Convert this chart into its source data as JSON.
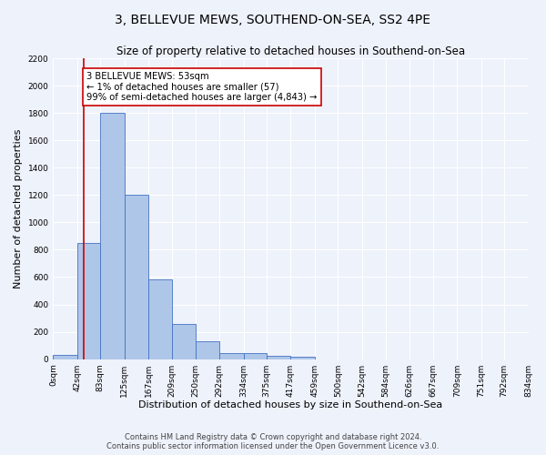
{
  "title": "3, BELLEVUE MEWS, SOUTHEND-ON-SEA, SS2 4PE",
  "subtitle": "Size of property relative to detached houses in Southend-on-Sea",
  "xlabel": "Distribution of detached houses by size in Southend-on-Sea",
  "ylabel": "Number of detached properties",
  "bar_edges": [
    0,
    42,
    83,
    125,
    167,
    209,
    250,
    292,
    334,
    375,
    417,
    459,
    500,
    542,
    584,
    626,
    667,
    709,
    751,
    792,
    834
  ],
  "bar_heights": [
    28,
    850,
    1800,
    1200,
    580,
    260,
    130,
    45,
    42,
    25,
    20,
    0,
    0,
    0,
    0,
    0,
    0,
    0,
    0,
    0
  ],
  "bar_color": "#aec6e8",
  "bar_edge_color": "#4472c4",
  "property_line_x": 53,
  "property_line_color": "#cc0000",
  "annotation_text": "3 BELLEVUE MEWS: 53sqm\n← 1% of detached houses are smaller (57)\n99% of semi-detached houses are larger (4,843) →",
  "annotation_box_color": "#ffffff",
  "annotation_box_edge_color": "#cc0000",
  "ylim": [
    0,
    2200
  ],
  "yticks": [
    0,
    200,
    400,
    600,
    800,
    1000,
    1200,
    1400,
    1600,
    1800,
    2000,
    2200
  ],
  "tick_labels": [
    "0sqm",
    "42sqm",
    "83sqm",
    "125sqm",
    "167sqm",
    "209sqm",
    "250sqm",
    "292sqm",
    "334sqm",
    "375sqm",
    "417sqm",
    "459sqm",
    "500sqm",
    "542sqm",
    "584sqm",
    "626sqm",
    "667sqm",
    "709sqm",
    "751sqm",
    "792sqm",
    "834sqm"
  ],
  "footer_line1": "Contains HM Land Registry data © Crown copyright and database right 2024.",
  "footer_line2": "Contains public sector information licensed under the Open Government Licence v3.0.",
  "bg_color": "#eef2fb",
  "grid_color": "#ffffff",
  "title_fontsize": 10,
  "subtitle_fontsize": 8.5,
  "axis_label_fontsize": 8,
  "tick_fontsize": 6.5,
  "footer_fontsize": 6,
  "annotation_fontsize": 7.2
}
